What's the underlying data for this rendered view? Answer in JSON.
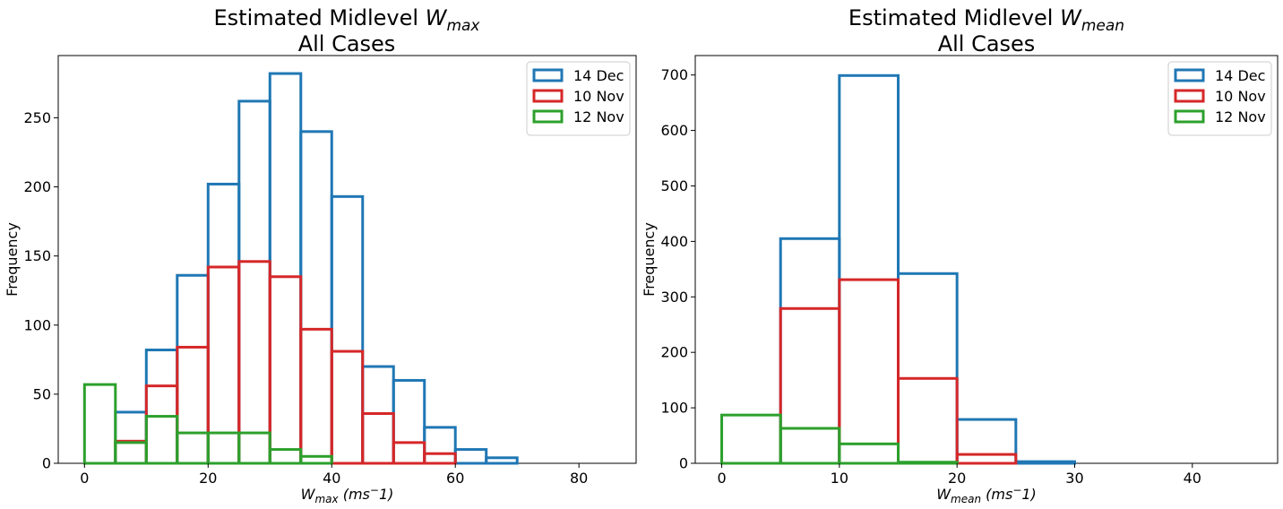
{
  "chart_data": [
    {
      "type": "histogram",
      "title_prefix": "Estimated Midlevel ",
      "title_var": "W",
      "title_sub": "max",
      "title_line2": "All Cases",
      "xlabel_var": "W",
      "xlabel_sub": "max",
      "xlabel_units_prefix": " (ms",
      "xlabel_units_sup": "−",
      "xlabel_units_suffix": "1)",
      "ylabel": "Frequency",
      "xlim": [
        -4.25,
        89.25
      ],
      "ylim": [
        0,
        295
      ],
      "xticks": [
        0,
        20,
        40,
        60,
        80
      ],
      "yticks": [
        0,
        50,
        100,
        150,
        200,
        250
      ],
      "legend_position": "top-right",
      "series": [
        {
          "name": "14 Dec",
          "color": "#1f77b4",
          "edges": [
            0,
            5,
            10,
            15,
            20,
            25,
            30,
            35,
            40,
            45,
            50,
            55,
            60,
            65,
            70,
            75,
            80,
            85
          ],
          "values": [
            0,
            37,
            82,
            136,
            202,
            262,
            282,
            240,
            193,
            70,
            60,
            26,
            10,
            4,
            0,
            0,
            0
          ]
        },
        {
          "name": "10 Nov",
          "color": "#d62728",
          "edges": [
            0,
            5,
            10,
            15,
            20,
            25,
            30,
            35,
            40,
            45,
            50,
            55,
            60,
            65,
            70,
            75,
            80,
            85
          ],
          "values": [
            0,
            16,
            56,
            84,
            142,
            146,
            135,
            97,
            81,
            36,
            15,
            7,
            0,
            0,
            0,
            0,
            0
          ]
        },
        {
          "name": "12 Nov",
          "color": "#2ca02c",
          "edges": [
            0,
            5,
            10,
            15,
            20,
            25,
            30,
            35,
            40,
            45,
            50,
            55,
            60,
            65,
            70,
            75,
            80,
            85
          ],
          "values": [
            57,
            15,
            34,
            22,
            22,
            22,
            10,
            5,
            0,
            0,
            0,
            0,
            0,
            0,
            0,
            0,
            0
          ]
        }
      ]
    },
    {
      "type": "histogram",
      "title_prefix": "Estimated Midlevel ",
      "title_var": "W",
      "title_sub": "mean",
      "title_line2": "All Cases",
      "xlabel_var": "W",
      "xlabel_sub": "mean",
      "xlabel_units_prefix": " (ms",
      "xlabel_units_sup": "−",
      "xlabel_units_suffix": "1)",
      "ylabel": "Frequency",
      "xlim": [
        -2.25,
        47.25
      ],
      "ylim": [
        0,
        735
      ],
      "xticks": [
        0,
        10,
        20,
        30,
        40
      ],
      "yticks": [
        0,
        100,
        200,
        300,
        400,
        500,
        600,
        700
      ],
      "legend_position": "top-right",
      "series": [
        {
          "name": "14 Dec",
          "color": "#1f77b4",
          "edges": [
            0,
            5,
            10,
            15,
            20,
            25,
            30,
            35,
            40,
            45
          ],
          "values": [
            0,
            405,
            699,
            342,
            79,
            3,
            0,
            0,
            0
          ]
        },
        {
          "name": "10 Nov",
          "color": "#d62728",
          "edges": [
            0,
            5,
            10,
            15,
            20,
            25,
            30,
            35,
            40,
            45
          ],
          "values": [
            0,
            279,
            331,
            153,
            16,
            0,
            0,
            0,
            0
          ]
        },
        {
          "name": "12 Nov",
          "color": "#2ca02c",
          "edges": [
            0,
            5,
            10,
            15,
            20,
            25,
            30,
            35,
            40,
            45
          ],
          "values": [
            87,
            63,
            35,
            2,
            0,
            0,
            0,
            0,
            0
          ]
        }
      ]
    }
  ]
}
